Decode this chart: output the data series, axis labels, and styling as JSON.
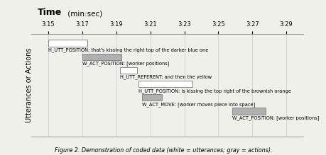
{
  "title_bold": "Time",
  "title_normal": " (min:sec)",
  "ylabel": "Utterances or Actions",
  "caption": "Figure 2. Demonstration of coded data (white = utterances; gray = actions).",
  "x_ticks": [
    195,
    197,
    199,
    201,
    203,
    205,
    207,
    209
  ],
  "x_tick_labels": [
    "3:15",
    "3:17",
    "3:19",
    "3:21",
    "3:23",
    "3:25",
    "3:27",
    "3:29"
  ],
  "xlim": [
    194.0,
    210.0
  ],
  "ylim": [
    0.0,
    6.8
  ],
  "bars": [
    {
      "start": 195.0,
      "end": 197.3,
      "y": 6.2,
      "height": 0.45,
      "color": "white",
      "label": "H_UTT_POSITION: that's kissing the right top of the darker blue one"
    },
    {
      "start": 197.0,
      "end": 199.3,
      "y": 5.3,
      "height": 0.45,
      "color": "#b0b0b0",
      "label": "W_ACT_POSITION: [worker positions]"
    },
    {
      "start": 199.2,
      "end": 200.2,
      "y": 4.4,
      "height": 0.45,
      "color": "white",
      "label": "H_UTT_REFERENT: and then the yellow"
    },
    {
      "start": 200.3,
      "end": 203.5,
      "y": 3.5,
      "height": 0.45,
      "color": "white",
      "label": "H_UTT_POSITION: is kissing the top right of the brownish orange"
    },
    {
      "start": 200.5,
      "end": 201.7,
      "y": 2.6,
      "height": 0.45,
      "color": "#b0b0b0",
      "label": "W_ACT_MOVE: [worker moves piece into space]"
    },
    {
      "start": 205.8,
      "end": 207.8,
      "y": 1.7,
      "height": 0.45,
      "color": "#b0b0b0",
      "label": "W_ACT_POSITION: [worker positions]"
    }
  ],
  "bg_color": "#f0f0eb",
  "plot_bg": "#f0f0eb",
  "grid_color": "#cccccc",
  "spine_color": "#888888",
  "label_fontsize": 4.8,
  "tick_fontsize": 6.0,
  "ylabel_fontsize": 7.0,
  "caption_fontsize": 5.8
}
